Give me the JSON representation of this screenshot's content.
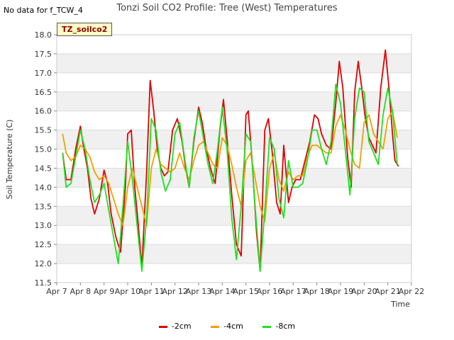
{
  "header": {
    "no_data_note": "No data for f_TCW_4",
    "title": "Tonzi Soil CO2 Profile: Tree (West) Temperatures",
    "badge": "TZ_soilco2"
  },
  "chart_data": {
    "type": "line",
    "title": "Tonzi Soil CO2 Profile: Tree (West) Temperatures",
    "xlabel": "Time",
    "ylabel": "Soil Temperature (C)",
    "xlim": [
      7,
      22
    ],
    "ylim": [
      11.5,
      18.0
    ],
    "xticks": [
      {
        "value": 7,
        "label": "Apr 7"
      },
      {
        "value": 8,
        "label": "Apr 8"
      },
      {
        "value": 9,
        "label": "Apr 9"
      },
      {
        "value": 10,
        "label": "Apr 10"
      },
      {
        "value": 11,
        "label": "Apr 11"
      },
      {
        "value": 12,
        "label": "Apr 12"
      },
      {
        "value": 13,
        "label": "Apr 13"
      },
      {
        "value": 14,
        "label": "Apr 14"
      },
      {
        "value": 15,
        "label": "Apr 15"
      },
      {
        "value": 16,
        "label": "Apr 16"
      },
      {
        "value": 17,
        "label": "Apr 17"
      },
      {
        "value": 18,
        "label": "Apr 18"
      },
      {
        "value": 19,
        "label": "Apr 19"
      },
      {
        "value": 20,
        "label": "Apr 20"
      },
      {
        "value": 21,
        "label": "Apr 21"
      },
      {
        "value": 22,
        "label": "Apr 22"
      }
    ],
    "yticks": [
      11.5,
      12.0,
      12.5,
      13.0,
      13.5,
      14.0,
      14.5,
      15.0,
      15.5,
      16.0,
      16.5,
      17.0,
      17.5,
      18.0
    ],
    "legend_position": "bottom-center",
    "series": [
      {
        "name": "-2cm",
        "color": "#e00000",
        "x": [
          7.25,
          7.4,
          7.6,
          7.8,
          8.0,
          8.15,
          8.3,
          8.45,
          8.6,
          8.8,
          9.0,
          9.15,
          9.3,
          9.5,
          9.7,
          9.9,
          10.0,
          10.15,
          10.3,
          10.45,
          10.6,
          10.8,
          10.95,
          11.1,
          11.25,
          11.4,
          11.55,
          11.7,
          11.9,
          12.1,
          12.3,
          12.45,
          12.6,
          12.8,
          13.0,
          13.15,
          13.3,
          13.5,
          13.7,
          13.9,
          14.05,
          14.2,
          14.4,
          14.6,
          14.8,
          15.0,
          15.1,
          15.25,
          15.45,
          15.6,
          15.8,
          15.95,
          16.1,
          16.3,
          16.45,
          16.6,
          16.8,
          16.95,
          17.1,
          17.3,
          17.5,
          17.7,
          17.9,
          18.05,
          18.2,
          18.4,
          18.6,
          18.8,
          18.95,
          19.1,
          19.3,
          19.45,
          19.6,
          19.75,
          19.9,
          20.05,
          20.2,
          20.35,
          20.5,
          20.7,
          20.9,
          21.05,
          21.2,
          21.3,
          21.45
        ],
        "values": [
          14.9,
          14.2,
          14.2,
          15.0,
          15.6,
          15.0,
          14.5,
          13.7,
          13.3,
          13.7,
          14.45,
          14.1,
          13.3,
          12.7,
          12.3,
          14.0,
          15.4,
          15.5,
          14.0,
          13.0,
          11.9,
          14.4,
          16.8,
          16.0,
          15.0,
          14.5,
          14.3,
          14.4,
          15.5,
          15.8,
          15.2,
          14.5,
          14.0,
          15.2,
          16.1,
          15.7,
          15.1,
          14.5,
          14.1,
          15.5,
          16.3,
          15.3,
          13.8,
          12.5,
          12.2,
          15.9,
          16.0,
          14.8,
          12.8,
          11.8,
          15.5,
          15.8,
          15.0,
          13.6,
          13.3,
          15.1,
          13.6,
          14.0,
          14.2,
          14.2,
          14.7,
          15.2,
          15.9,
          15.8,
          15.4,
          15.1,
          15.0,
          16.2,
          17.3,
          16.6,
          14.8,
          14.0,
          16.5,
          17.3,
          16.6,
          15.8,
          15.3,
          15.1,
          14.9,
          16.6,
          17.6,
          16.6,
          15.4,
          14.7,
          14.55
        ]
      },
      {
        "name": "-4cm",
        "color": "#f0a000",
        "x": [
          7.25,
          7.4,
          7.6,
          7.8,
          8.0,
          8.2,
          8.4,
          8.6,
          8.8,
          9.0,
          9.2,
          9.4,
          9.6,
          9.8,
          10.0,
          10.2,
          10.4,
          10.6,
          10.8,
          11.0,
          11.2,
          11.4,
          11.6,
          11.8,
          12.0,
          12.2,
          12.4,
          12.6,
          12.8,
          13.0,
          13.2,
          13.4,
          13.6,
          13.8,
          14.0,
          14.2,
          14.4,
          14.6,
          14.8,
          15.0,
          15.2,
          15.4,
          15.6,
          15.8,
          16.0,
          16.2,
          16.4,
          16.6,
          16.8,
          17.0,
          17.2,
          17.4,
          17.6,
          17.8,
          18.0,
          18.2,
          18.4,
          18.6,
          18.8,
          19.0,
          19.2,
          19.4,
          19.6,
          19.8,
          20.0,
          20.2,
          20.4,
          20.6,
          20.8,
          21.0,
          21.2,
          21.4
        ],
        "values": [
          15.4,
          14.9,
          14.7,
          14.8,
          15.1,
          15.0,
          14.8,
          14.4,
          14.2,
          14.3,
          14.1,
          13.7,
          13.3,
          13.0,
          14.0,
          14.5,
          14.0,
          13.5,
          13.0,
          14.5,
          15.0,
          14.6,
          14.5,
          14.4,
          14.5,
          14.9,
          14.5,
          14.2,
          14.7,
          15.1,
          15.2,
          14.9,
          14.6,
          14.5,
          15.3,
          15.1,
          14.6,
          14.0,
          13.5,
          14.7,
          14.9,
          14.2,
          13.5,
          13.1,
          14.5,
          14.9,
          14.2,
          13.9,
          14.4,
          14.2,
          14.3,
          14.3,
          14.8,
          15.1,
          15.1,
          15.0,
          14.9,
          14.9,
          15.6,
          15.9,
          15.5,
          15.0,
          14.6,
          14.5,
          15.7,
          15.9,
          15.4,
          15.2,
          15.0,
          15.8,
          16.0,
          15.3
        ]
      },
      {
        "name": "-8cm",
        "color": "#20e020",
        "x": [
          7.25,
          7.4,
          7.6,
          7.8,
          8.0,
          8.2,
          8.4,
          8.6,
          8.8,
          9.0,
          9.2,
          9.4,
          9.6,
          9.8,
          10.0,
          10.2,
          10.4,
          10.6,
          10.8,
          11.0,
          11.2,
          11.4,
          11.6,
          11.8,
          12.0,
          12.2,
          12.4,
          12.6,
          12.8,
          13.0,
          13.2,
          13.4,
          13.6,
          13.8,
          14.0,
          14.2,
          14.4,
          14.6,
          14.8,
          15.0,
          15.2,
          15.4,
          15.6,
          15.8,
          16.0,
          16.2,
          16.4,
          16.6,
          16.8,
          17.0,
          17.2,
          17.4,
          17.6,
          17.8,
          18.0,
          18.2,
          18.4,
          18.6,
          18.8,
          19.0,
          19.2,
          19.4,
          19.6,
          19.8,
          20.0,
          20.2,
          20.4,
          20.6,
          20.8,
          21.0,
          21.2,
          21.4
        ],
        "values": [
          14.9,
          14.0,
          14.1,
          14.8,
          15.5,
          15.0,
          14.2,
          13.6,
          13.8,
          14.1,
          13.4,
          12.7,
          12.0,
          13.5,
          15.2,
          14.2,
          13.0,
          11.8,
          13.2,
          15.8,
          15.5,
          14.4,
          13.9,
          14.2,
          15.4,
          15.7,
          14.8,
          14.0,
          15.3,
          16.0,
          15.3,
          14.6,
          14.1,
          15.0,
          16.1,
          15.0,
          13.2,
          12.1,
          13.5,
          15.4,
          15.2,
          13.4,
          11.8,
          13.4,
          15.3,
          15.0,
          13.7,
          13.2,
          14.7,
          14.0,
          14.0,
          14.1,
          14.7,
          15.5,
          15.5,
          15.0,
          14.6,
          15.2,
          16.7,
          16.2,
          15.0,
          13.8,
          15.8,
          16.6,
          16.5,
          15.2,
          14.9,
          14.6,
          15.9,
          16.6,
          16.0,
          14.6
        ]
      }
    ]
  }
}
